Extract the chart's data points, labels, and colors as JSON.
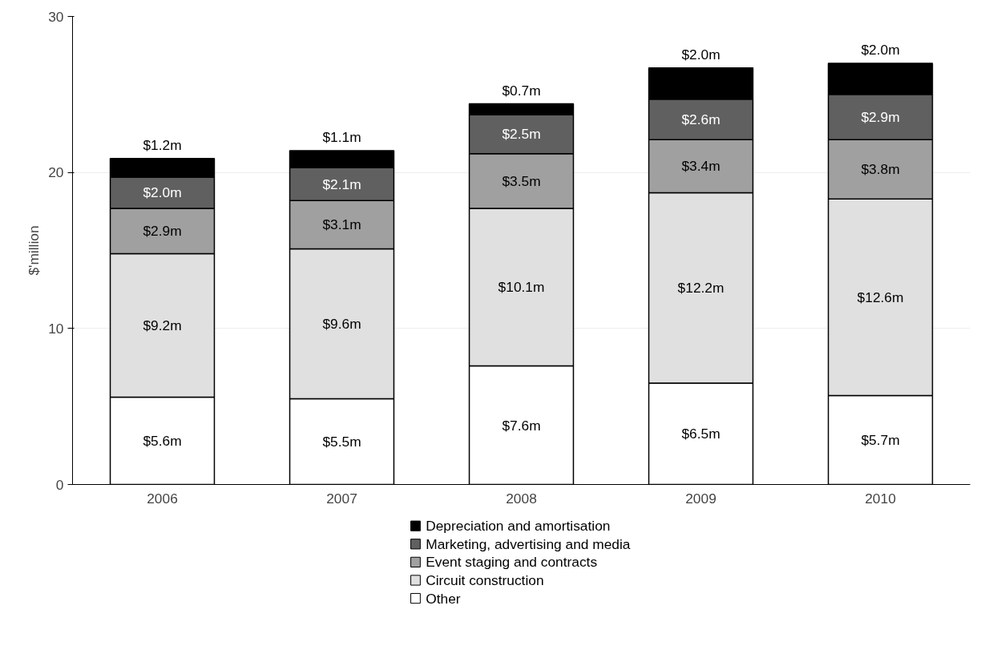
{
  "chart_data": {
    "type": "bar",
    "stacked": true,
    "ylabel": "$'million",
    "categories": [
      "2006",
      "2007",
      "2008",
      "2009",
      "2010"
    ],
    "series": [
      {
        "name": "Other",
        "color": "#ffffff",
        "values": [
          5.6,
          5.5,
          7.6,
          6.5,
          5.7
        ],
        "value_labels": [
          "$5.6m",
          "$5.5m",
          "$7.6m",
          "$6.5m",
          "$5.7m"
        ]
      },
      {
        "name": "Circuit construction",
        "color": "#e0e0e0",
        "values": [
          9.2,
          9.6,
          10.1,
          12.2,
          12.6
        ],
        "value_labels": [
          "$9.2m",
          "$9.6m",
          "$10.1m",
          "$12.2m",
          "$12.6m"
        ]
      },
      {
        "name": "Event staging and contracts",
        "color": "#a0a0a0",
        "values": [
          2.9,
          3.1,
          3.5,
          3.4,
          3.8
        ],
        "value_labels": [
          "$2.9m",
          "$3.1m",
          "$3.5m",
          "$3.4m",
          "$3.8m"
        ]
      },
      {
        "name": "Marketing, advertising and media",
        "color": "#606060",
        "values": [
          2.0,
          2.1,
          2.5,
          2.6,
          2.9
        ],
        "value_labels": [
          "$2.0m",
          "$2.1m",
          "$2.5m",
          "$2.6m",
          "$2.9m"
        ]
      },
      {
        "name": "Depreciation and amortisation",
        "color": "#000000",
        "values": [
          1.2,
          1.1,
          0.7,
          2.0,
          2.0
        ],
        "value_labels": [
          "$1.2m",
          "$1.1m",
          "$0.7m",
          "$2.0m",
          "$2.0m"
        ]
      }
    ],
    "ylim": [
      0,
      30
    ],
    "yticks": [
      0,
      10,
      20,
      30
    ],
    "grid": "y",
    "legend": "bottom"
  }
}
